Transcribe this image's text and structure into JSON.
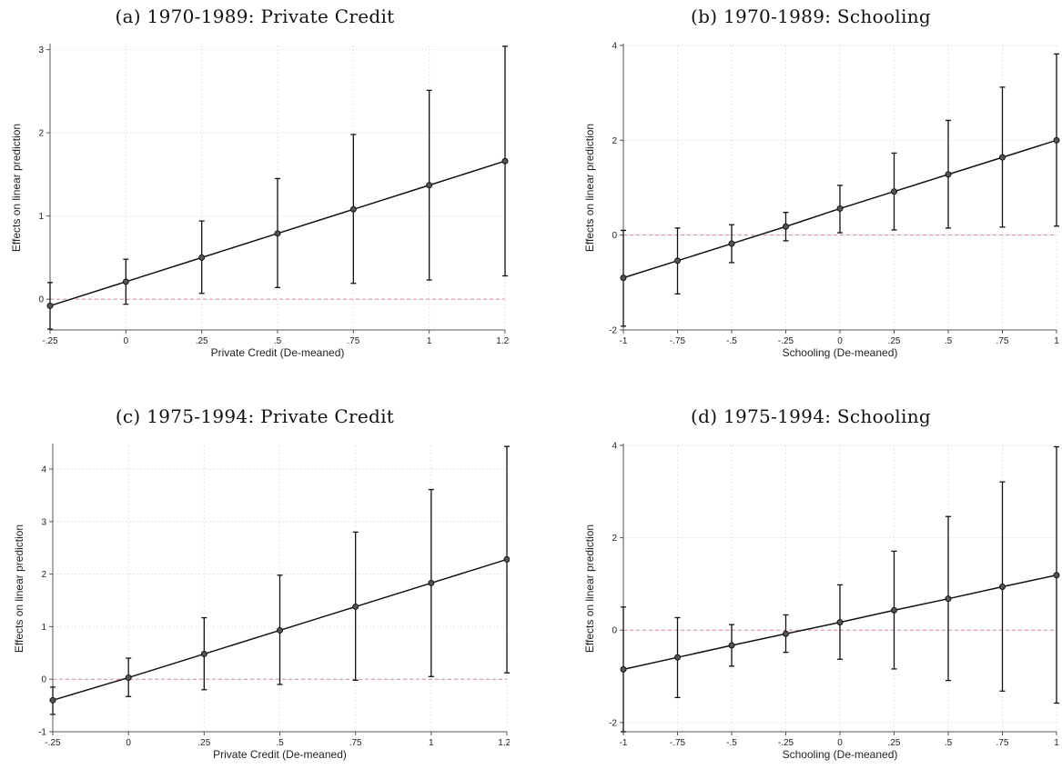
{
  "chart_data": [
    {
      "type": "scatter",
      "title": "(a) 1970-1989: Private Credit",
      "xlabel": "Private Credit (De-meaned)",
      "ylabel": "Effects on linear prediction",
      "xticks": [
        "-.25",
        "0",
        ".25",
        ".5",
        ".75",
        "1",
        "1.25"
      ],
      "yticks": [
        "0",
        "1",
        "2",
        "3"
      ],
      "xlim": [
        -0.25,
        1.25
      ],
      "ylim": [
        -0.37,
        3.05
      ],
      "x": [
        -0.25,
        0,
        0.25,
        0.5,
        0.75,
        1,
        1.25
      ],
      "y": [
        -0.08,
        0.21,
        0.5,
        0.79,
        1.08,
        1.37,
        1.66
      ],
      "ci_low": [
        -0.36,
        -0.06,
        0.07,
        0.14,
        0.19,
        0.23,
        0.28
      ],
      "ci_high": [
        0.2,
        0.48,
        0.94,
        1.45,
        1.98,
        2.51,
        3.04
      ],
      "reference_line": 0,
      "grid": true
    },
    {
      "type": "scatter",
      "title": "(b) 1970-1989: Schooling",
      "xlabel": "Schooling (De-meaned)",
      "ylabel": "Effects on linear prediction",
      "xticks": [
        "-1",
        "-.75",
        "-.5",
        "-.25",
        "0",
        ".25",
        ".5",
        ".75",
        "1"
      ],
      "yticks": [
        "-2",
        "0",
        "2",
        "4"
      ],
      "xlim": [
        -1,
        1
      ],
      "ylim": [
        -2,
        4
      ],
      "x": [
        -1,
        -0.75,
        -0.5,
        -0.25,
        0,
        0.25,
        0.5,
        0.75,
        1
      ],
      "y": [
        -0.9,
        -0.54,
        -0.18,
        0.18,
        0.56,
        0.92,
        1.28,
        1.64,
        2.0
      ],
      "ci_low": [
        -1.92,
        -1.24,
        -0.58,
        -0.12,
        0.05,
        0.11,
        0.15,
        0.17,
        0.19
      ],
      "ci_high": [
        0.1,
        0.15,
        0.22,
        0.48,
        1.05,
        1.73,
        2.42,
        3.12,
        3.82
      ],
      "reference_line": 0,
      "grid": true
    },
    {
      "type": "scatter",
      "title": "(c) 1975-1994: Private Credit",
      "xlabel": "Private Credit (De-meaned)",
      "ylabel": "Effects on linear prediction",
      "xticks": [
        "-.25",
        "0",
        ".25",
        ".5",
        ".75",
        "1",
        "1.25"
      ],
      "yticks": [
        "-1",
        "0",
        "1",
        "2",
        "3",
        "4"
      ],
      "xlim": [
        -0.25,
        1.25
      ],
      "ylim": [
        -1,
        4.45
      ],
      "x": [
        -0.25,
        0,
        0.25,
        0.5,
        0.75,
        1,
        1.25
      ],
      "y": [
        -0.4,
        0.03,
        0.48,
        0.93,
        1.38,
        1.83,
        2.28
      ],
      "ci_low": [
        -0.67,
        -0.33,
        -0.2,
        -0.1,
        -0.02,
        0.05,
        0.12
      ],
      "ci_high": [
        -0.15,
        0.4,
        1.17,
        1.98,
        2.8,
        3.61,
        4.43
      ],
      "reference_line": 0,
      "grid": true
    },
    {
      "type": "scatter",
      "title": "(d) 1975-1994: Schooling",
      "xlabel": "Schooling (De-meaned)",
      "ylabel": "Effects on linear prediction",
      "xticks": [
        "-1",
        "-.75",
        "-.5",
        "-.25",
        "0",
        ".25",
        ".5",
        ".75",
        "1"
      ],
      "yticks": [
        "-2",
        "0",
        "2",
        "4"
      ],
      "xlim": [
        -1,
        1
      ],
      "ylim": [
        -2.2,
        4
      ],
      "x": [
        -1,
        -0.75,
        -0.5,
        -0.25,
        0,
        0.25,
        0.5,
        0.75,
        1
      ],
      "y": [
        -0.85,
        -0.59,
        -0.33,
        -0.08,
        0.17,
        0.43,
        0.68,
        0.94,
        1.19
      ],
      "ci_low": [
        -2.2,
        -1.46,
        -0.78,
        -0.48,
        -0.63,
        -0.84,
        -1.09,
        -1.32,
        -1.58
      ],
      "ci_high": [
        0.5,
        0.27,
        0.12,
        0.33,
        0.98,
        1.71,
        2.46,
        3.21,
        3.97
      ],
      "reference_line": 0,
      "grid": true
    }
  ]
}
